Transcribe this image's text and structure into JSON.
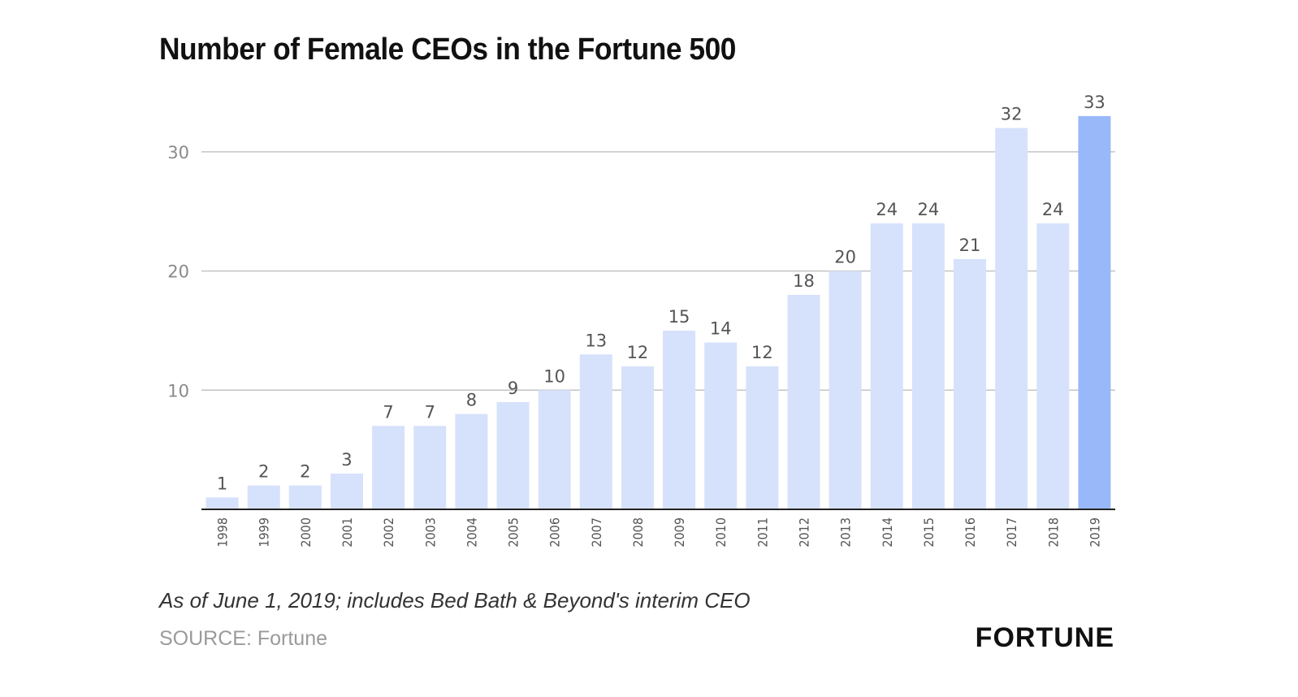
{
  "chart_data": {
    "type": "bar",
    "title": "Number of Female CEOs in the Fortune 500",
    "categories": [
      "1998",
      "1999",
      "2000",
      "2001",
      "2002",
      "2003",
      "2004",
      "2005",
      "2006",
      "2007",
      "2008",
      "2009",
      "2010",
      "2011",
      "2012",
      "2013",
      "2014",
      "2015",
      "2016",
      "2017",
      "2018",
      "2019"
    ],
    "values": [
      1,
      2,
      2,
      3,
      7,
      7,
      8,
      9,
      10,
      13,
      12,
      15,
      14,
      12,
      18,
      20,
      24,
      24,
      21,
      32,
      24,
      33
    ],
    "ylim": [
      0,
      33
    ],
    "yticks": [
      10,
      20,
      30
    ],
    "grid": true,
    "data_labels": true,
    "colors": {
      "bar": "#d6e2fb",
      "highlight_bar": "#99b8f9",
      "highlight_category": "2019",
      "grid": "#c4c4c4",
      "axis": "#222222",
      "label": "#555555"
    }
  },
  "footnote": "As of June 1, 2019; includes Bed Bath & Beyond's interim CEO",
  "source": "SOURCE: Fortune",
  "brand": "FORTUNE"
}
